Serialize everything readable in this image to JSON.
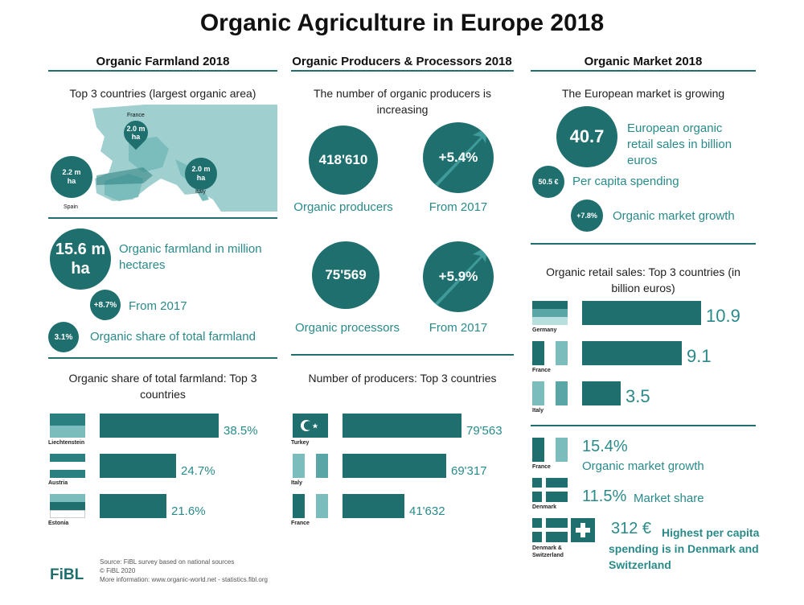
{
  "title": "Organic Agriculture in Europe 2018",
  "columns": {
    "farmland": "Organic Farmland 2018",
    "producers": "Organic Producers & Processors 2018",
    "market": "Organic Market 2018"
  },
  "farmland": {
    "top3_title": "Top 3 countries (largest organic area)",
    "map_labels": {
      "france": "France",
      "spain": "Spain",
      "italy": "Italy"
    },
    "map_values": {
      "france": "2.0 m ha",
      "spain": "2.2 m ha",
      "italy": "2.0 m ha"
    },
    "area_value": "15.6 m ha",
    "area_label": "Organic farmland in million hectares",
    "growth_value": "+8.7%",
    "growth_label": "From 2017",
    "share_value": "3.1%",
    "share_label": "Organic share of total farmland"
  },
  "producers": {
    "subtitle": "The number of organic producers is increasing",
    "producers_value": "418'610",
    "producers_label": "Organic producers",
    "producers_growth": "+5.4%",
    "producers_growth_label": "From 2017",
    "processors_value": "75'569",
    "processors_label": "Organic processors",
    "processors_growth": "+5.9%",
    "processors_growth_label": "From 2017"
  },
  "market": {
    "subtitle": "The European market is growing",
    "sales_value": "40.7",
    "sales_label": "European organic retail sales in billion euros",
    "per_capita_value": "50.5 €",
    "per_capita_label": "Per capita spending",
    "growth_value": "+7.8%",
    "growth_label": "Organic market growth",
    "highlights": {
      "growth_value": "15.4%",
      "growth_label": "Organic market growth",
      "growth_country": "France",
      "share_value": "11.5%",
      "share_label": "Market share",
      "share_country": "Denmark",
      "capita_value": "312 €",
      "capita_label": "Highest per capita spending is in Denmark and Switzerland",
      "capita_country": "Denmark & Switzerland"
    }
  },
  "colors": {
    "teal": "#1f6f6f",
    "teal_text": "#2a8a8a",
    "map": "#9fcfcf"
  },
  "footer": {
    "logo": "FiBL",
    "source": "Source: FiBL survey based on national sources",
    "copyright": "© FiBL 2020",
    "more": "More information: www.organic-world.net - statistics.fibl.org"
  },
  "chart_data": [
    {
      "type": "bar",
      "title": "Organic share of total farmland: Top 3 countries",
      "categories": [
        "Liechtenstein",
        "Austria",
        "Estonia"
      ],
      "values": [
        38.5,
        24.7,
        21.6
      ],
      "labels": [
        "38.5%",
        "24.7%",
        "21.6%"
      ]
    },
    {
      "type": "bar",
      "title": "Number of producers: Top 3 countries",
      "categories": [
        "Turkey",
        "Italy",
        "France"
      ],
      "values": [
        79563,
        69317,
        41632
      ],
      "labels": [
        "79'563",
        "69'317",
        "41'632"
      ]
    },
    {
      "type": "bar",
      "title": "Organic retail sales: Top 3 countries (in billion euros)",
      "categories": [
        "Germany",
        "France",
        "Italy"
      ],
      "values": [
        10.9,
        9.1,
        3.5
      ],
      "labels": [
        "10.9",
        "9.1",
        "3.5"
      ]
    }
  ]
}
